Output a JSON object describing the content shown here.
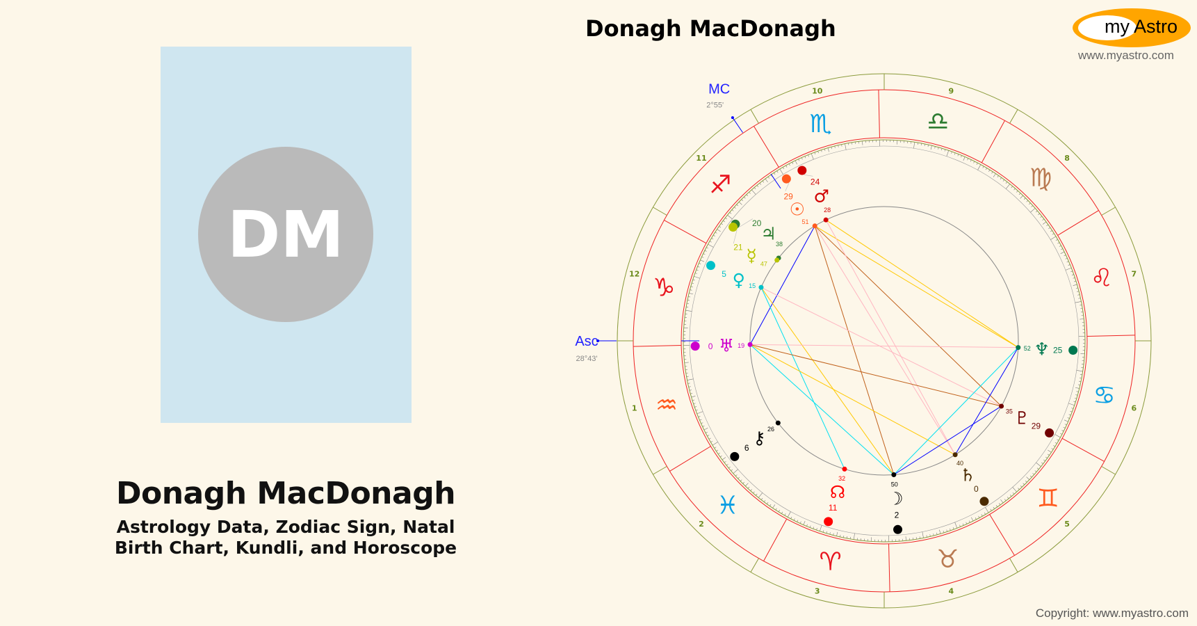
{
  "header": {
    "title": "Donagh MacDonagh"
  },
  "logo": {
    "my": "my",
    "astro": "Astro",
    "url": "www.myastro.com"
  },
  "profile": {
    "initials": "DM",
    "name": "Donagh MacDonagh",
    "subtitle_line1": "Astrology Data, Zodiac Sign, Natal",
    "subtitle_line2": "Birth Chart, Kundli, and Horoscope",
    "card_color": "#cfe6f0",
    "avatar_color": "#bababa"
  },
  "footer": {
    "copyright": "Copyright: www.myastro.com"
  },
  "chart": {
    "asc": {
      "label": "Asc",
      "value": "28°43'",
      "sign": "Capricorn",
      "deg": 28,
      "min": 43
    },
    "mc": {
      "label": "MC",
      "value": "2°55'",
      "sign": "Sagittarius",
      "deg": 2,
      "min": 55
    },
    "signs": [
      {
        "name": "Aries",
        "glyph": "♈︎",
        "color": "#e8141e"
      },
      {
        "name": "Taurus",
        "glyph": "♉︎",
        "color": "#b97a52"
      },
      {
        "name": "Gemini",
        "glyph": "♊︎",
        "color": "#ff5a1e"
      },
      {
        "name": "Cancer",
        "glyph": "♋︎",
        "color": "#0b9fe3"
      },
      {
        "name": "Leo",
        "glyph": "♌︎",
        "color": "#e8141e"
      },
      {
        "name": "Virgo",
        "glyph": "♍︎",
        "color": "#b97a52"
      },
      {
        "name": "Libra",
        "glyph": "♎︎",
        "color": "#2e7d32"
      },
      {
        "name": "Scorpio",
        "glyph": "♏︎",
        "color": "#0b9fe3"
      },
      {
        "name": "Sagittarius",
        "glyph": "♐︎",
        "color": "#e8141e"
      },
      {
        "name": "Capricorn",
        "glyph": "♑︎",
        "color": "#e8141e"
      },
      {
        "name": "Aquarius",
        "glyph": "♒︎",
        "color": "#ff5a1e"
      },
      {
        "name": "Pisces",
        "glyph": "♓︎",
        "color": "#0b9fe3"
      }
    ],
    "houses": [
      "1",
      "2",
      "3",
      "4",
      "5",
      "6",
      "7",
      "8",
      "9",
      "10",
      "11",
      "12"
    ],
    "planets": [
      {
        "name": "Sun",
        "glyph": "☉",
        "sign": 7,
        "deg": "29",
        "min": "51",
        "color": "#ff5a1e"
      },
      {
        "name": "Mars",
        "glyph": "♂",
        "sign": 7,
        "deg": "24",
        "min": "28",
        "color": "#d00000"
      },
      {
        "name": "Jupiter",
        "glyph": "♃",
        "sign": 8,
        "deg": "20",
        "min": "38",
        "color": "#2e7d32"
      },
      {
        "name": "Mercury",
        "glyph": "☿",
        "sign": 8,
        "deg": "21",
        "min": "47",
        "color": "#b8c400"
      },
      {
        "name": "Venus",
        "glyph": "♀",
        "sign": 9,
        "deg": "5",
        "min": "15",
        "color": "#00c0c8"
      },
      {
        "name": "Uranus",
        "glyph": "♅",
        "sign": 10,
        "deg": "0",
        "min": "19",
        "color": "#cc00cc"
      },
      {
        "name": "Chiron",
        "glyph": "⚷",
        "sign": 11,
        "deg": "6",
        "min": "26",
        "color": "#000000"
      },
      {
        "name": "North Node",
        "glyph": "☊",
        "sign": 0,
        "deg": "11",
        "min": "32",
        "color": "#ff0000"
      },
      {
        "name": "Moon",
        "glyph": "☽",
        "sign": 1,
        "deg": "2",
        "min": "50",
        "color": "#000000"
      },
      {
        "name": "Saturn",
        "glyph": "♄",
        "sign": 2,
        "deg": "0",
        "min": "40",
        "color": "#4a2a00"
      },
      {
        "name": "Pluto",
        "glyph": "♇",
        "sign": 2,
        "deg": "29",
        "min": "35",
        "color": "#700000"
      },
      {
        "name": "Neptune",
        "glyph": "♆",
        "sign": 3,
        "deg": "25",
        "min": "52",
        "color": "#007850"
      }
    ],
    "aspects": [
      {
        "from": "Sun",
        "to": "Uranus",
        "color": "#0000ff"
      },
      {
        "from": "Sun",
        "to": "Neptune",
        "color": "#ffc800"
      },
      {
        "from": "Sun",
        "to": "Pluto",
        "color": "#c0601a"
      },
      {
        "from": "Sun",
        "to": "Moon",
        "color": "#c0601a"
      },
      {
        "from": "Sun",
        "to": "Saturn",
        "color": "#ffb6c1"
      },
      {
        "from": "Mars",
        "to": "Neptune",
        "color": "#ffc800"
      },
      {
        "from": "Mars",
        "to": "Saturn",
        "color": "#ffb6c1"
      },
      {
        "from": "Venus",
        "to": "Pluto",
        "color": "#ffb6c1"
      },
      {
        "from": "Venus",
        "to": "North Node",
        "color": "#00e0f0"
      },
      {
        "from": "Venus",
        "to": "Moon",
        "color": "#ffc800"
      },
      {
        "from": "Uranus",
        "to": "Neptune",
        "color": "#ffb6c1"
      },
      {
        "from": "Uranus",
        "to": "Pluto",
        "color": "#c0601a"
      },
      {
        "from": "Uranus",
        "to": "Moon",
        "color": "#00e0f0"
      },
      {
        "from": "Uranus",
        "to": "Saturn",
        "color": "#ffc800"
      },
      {
        "from": "Neptune",
        "to": "Moon",
        "color": "#00e0f0"
      },
      {
        "from": "Neptune",
        "to": "Saturn",
        "color": "#0000ff"
      },
      {
        "from": "Moon",
        "to": "Pluto",
        "color": "#0000ff"
      }
    ]
  }
}
